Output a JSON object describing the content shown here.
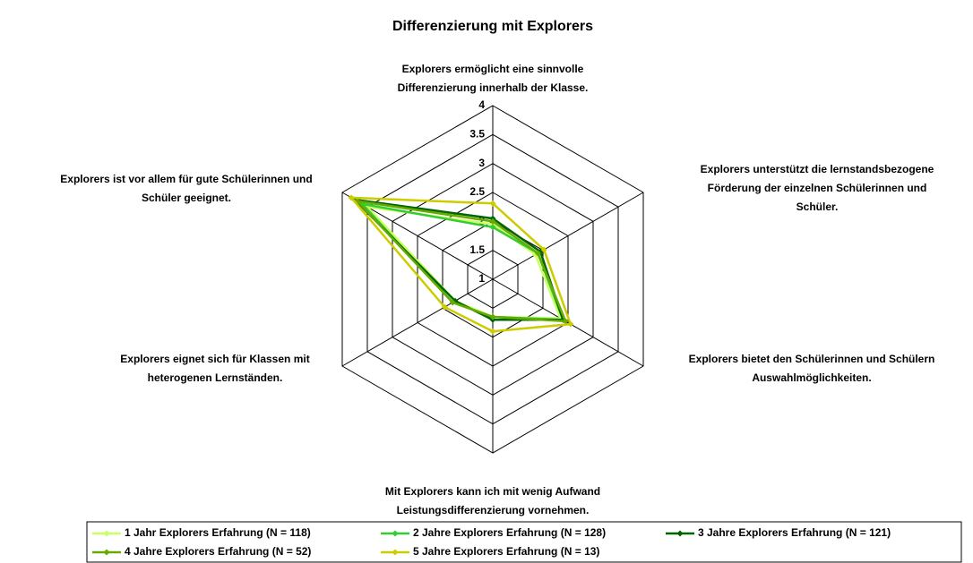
{
  "chart_data": {
    "type": "radar",
    "title": "Differenzierung mit Explorers",
    "categories": [
      [
        "Explorers ermöglicht eine sinnvolle",
        "Differenzierung innerhalb der Klasse."
      ],
      [
        "Explorers unterstützt die lernstandsbezogene",
        "Förderung der einzelnen Schülerinnen und",
        "Schüler."
      ],
      [
        "Explorers bietet den Schülerinnen und Schülern",
        "Auswahlmöglichkeiten."
      ],
      [
        "Mit Explorers kann ich mit wenig Aufwand",
        "Leistungsdifferenzierung vornehmen."
      ],
      [
        "Explorers eignet sich für Klassen mit",
        "heterogenen Lernständen."
      ],
      [
        "Explorers ist vor allem für gute Schülerinnen und",
        "Schüler geeignet."
      ]
    ],
    "rlim": [
      1,
      4
    ],
    "rticks": [
      1,
      1.5,
      2,
      2.5,
      3,
      3.5,
      4
    ],
    "grid": true,
    "series": [
      {
        "name": "1 Jahr Explorers Erfahrung (N = 118)",
        "color": "#ccff66",
        "values": [
          1.95,
          1.85,
          2.35,
          1.65,
          1.75,
          3.5
        ]
      },
      {
        "name": "2 Jahre Explorers Erfahrung (N = 128)",
        "color": "#33cc33",
        "values": [
          1.9,
          1.9,
          2.4,
          1.65,
          1.8,
          3.6
        ]
      },
      {
        "name": "3 Jahre Explorers Erfahrung (N = 121)",
        "color": "#006600",
        "values": [
          2.05,
          1.95,
          2.4,
          1.7,
          1.75,
          3.75
        ]
      },
      {
        "name": "4 Jahre Explorers Erfahrung (N = 52)",
        "color": "#66aa00",
        "values": [
          2.0,
          1.9,
          2.45,
          1.65,
          1.8,
          3.7
        ]
      },
      {
        "name": "5 Jahre Explorers Erfahrung (N = 13)",
        "color": "#cccc00",
        "values": [
          2.31,
          2.02,
          2.55,
          1.9,
          1.96,
          3.82
        ]
      }
    ]
  }
}
